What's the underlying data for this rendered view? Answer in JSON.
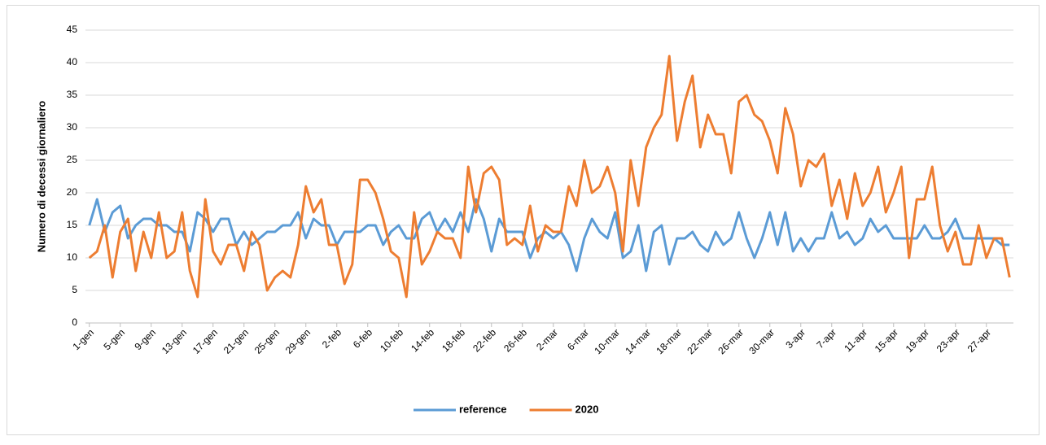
{
  "chart_data": {
    "type": "line",
    "y_label": "Numero di decessi giornaliero",
    "categories": [
      "1-gen",
      null,
      null,
      null,
      "5-gen",
      null,
      null,
      null,
      "9-gen",
      null,
      null,
      null,
      "13-gen",
      null,
      null,
      null,
      "17-gen",
      null,
      null,
      null,
      "21-gen",
      null,
      null,
      null,
      "25-gen",
      null,
      null,
      null,
      "29-gen",
      null,
      null,
      null,
      "2-feb",
      null,
      null,
      null,
      "6-feb",
      null,
      null,
      null,
      "10-feb",
      null,
      null,
      null,
      "14-feb",
      null,
      null,
      null,
      "18-feb",
      null,
      null,
      null,
      "22-feb",
      null,
      null,
      null,
      "26-feb",
      null,
      null,
      null,
      "2-mar",
      null,
      null,
      null,
      "6-mar",
      null,
      null,
      null,
      "10-mar",
      null,
      null,
      null,
      "14-mar",
      null,
      null,
      null,
      "18-mar",
      null,
      null,
      null,
      "22-mar",
      null,
      null,
      null,
      "26-mar",
      null,
      null,
      null,
      "30-mar",
      null,
      null,
      null,
      "3-apr",
      null,
      null,
      null,
      "7-apr",
      null,
      null,
      null,
      "11-apr",
      null,
      null,
      null,
      "15-apr",
      null,
      null,
      null,
      "19-apr",
      null,
      null,
      null,
      "23-apr",
      null,
      null,
      null,
      "27-apr",
      null,
      null,
      null
    ],
    "series": [
      {
        "name": "reference",
        "color": "#5b9bd5",
        "values": [
          15,
          19,
          14,
          17,
          18,
          13,
          15,
          16,
          16,
          15,
          15,
          14,
          14,
          11,
          17,
          16,
          14,
          16,
          16,
          12,
          14,
          12,
          13,
          14,
          14,
          15,
          15,
          17,
          13,
          16,
          15,
          15,
          12,
          14,
          14,
          14,
          15,
          15,
          12,
          14,
          15,
          13,
          13,
          16,
          17,
          14,
          16,
          14,
          17,
          14,
          19,
          16,
          11,
          16,
          14,
          14,
          14,
          10,
          13,
          14,
          13,
          14,
          12,
          8,
          13,
          16,
          14,
          13,
          17,
          10,
          11,
          15,
          8,
          14,
          15,
          9,
          13,
          13,
          14,
          12,
          11,
          14,
          12,
          13,
          17,
          13,
          10,
          13,
          17,
          12,
          17,
          11,
          13,
          11,
          13,
          13,
          17,
          13,
          14,
          12,
          13,
          16,
          14,
          15,
          13,
          13,
          13,
          13,
          15,
          13,
          13,
          14,
          16,
          13,
          13,
          13,
          13,
          13,
          12,
          12
        ]
      },
      {
        "name": "2020",
        "color": "#ed7d31",
        "values": [
          10,
          11,
          15,
          7,
          14,
          16,
          8,
          14,
          10,
          17,
          10,
          11,
          17,
          8,
          4,
          19,
          11,
          9,
          12,
          12,
          8,
          14,
          12,
          5,
          7,
          8,
          7,
          12,
          21,
          17,
          19,
          12,
          12,
          6,
          9,
          22,
          22,
          20,
          16,
          11,
          10,
          4,
          17,
          9,
          11,
          14,
          13,
          13,
          10,
          24,
          17,
          23,
          24,
          22,
          12,
          13,
          12,
          18,
          11,
          15,
          14,
          14,
          21,
          18,
          25,
          20,
          21,
          24,
          20,
          11,
          25,
          18,
          27,
          30,
          32,
          41,
          28,
          34,
          38,
          27,
          32,
          29,
          29,
          23,
          34,
          35,
          32,
          31,
          28,
          23,
          33,
          29,
          21,
          25,
          24,
          26,
          18,
          22,
          16,
          23,
          18,
          20,
          24,
          17,
          20,
          24,
          10,
          19,
          19,
          24,
          15,
          11,
          14,
          9,
          9,
          15,
          10,
          13,
          13,
          7
        ]
      }
    ],
    "ylim": [
      0,
      45
    ],
    "yticks": [
      0,
      5,
      10,
      15,
      20,
      25,
      30,
      35,
      40,
      45
    ],
    "grid": true,
    "legend": "bottom"
  }
}
